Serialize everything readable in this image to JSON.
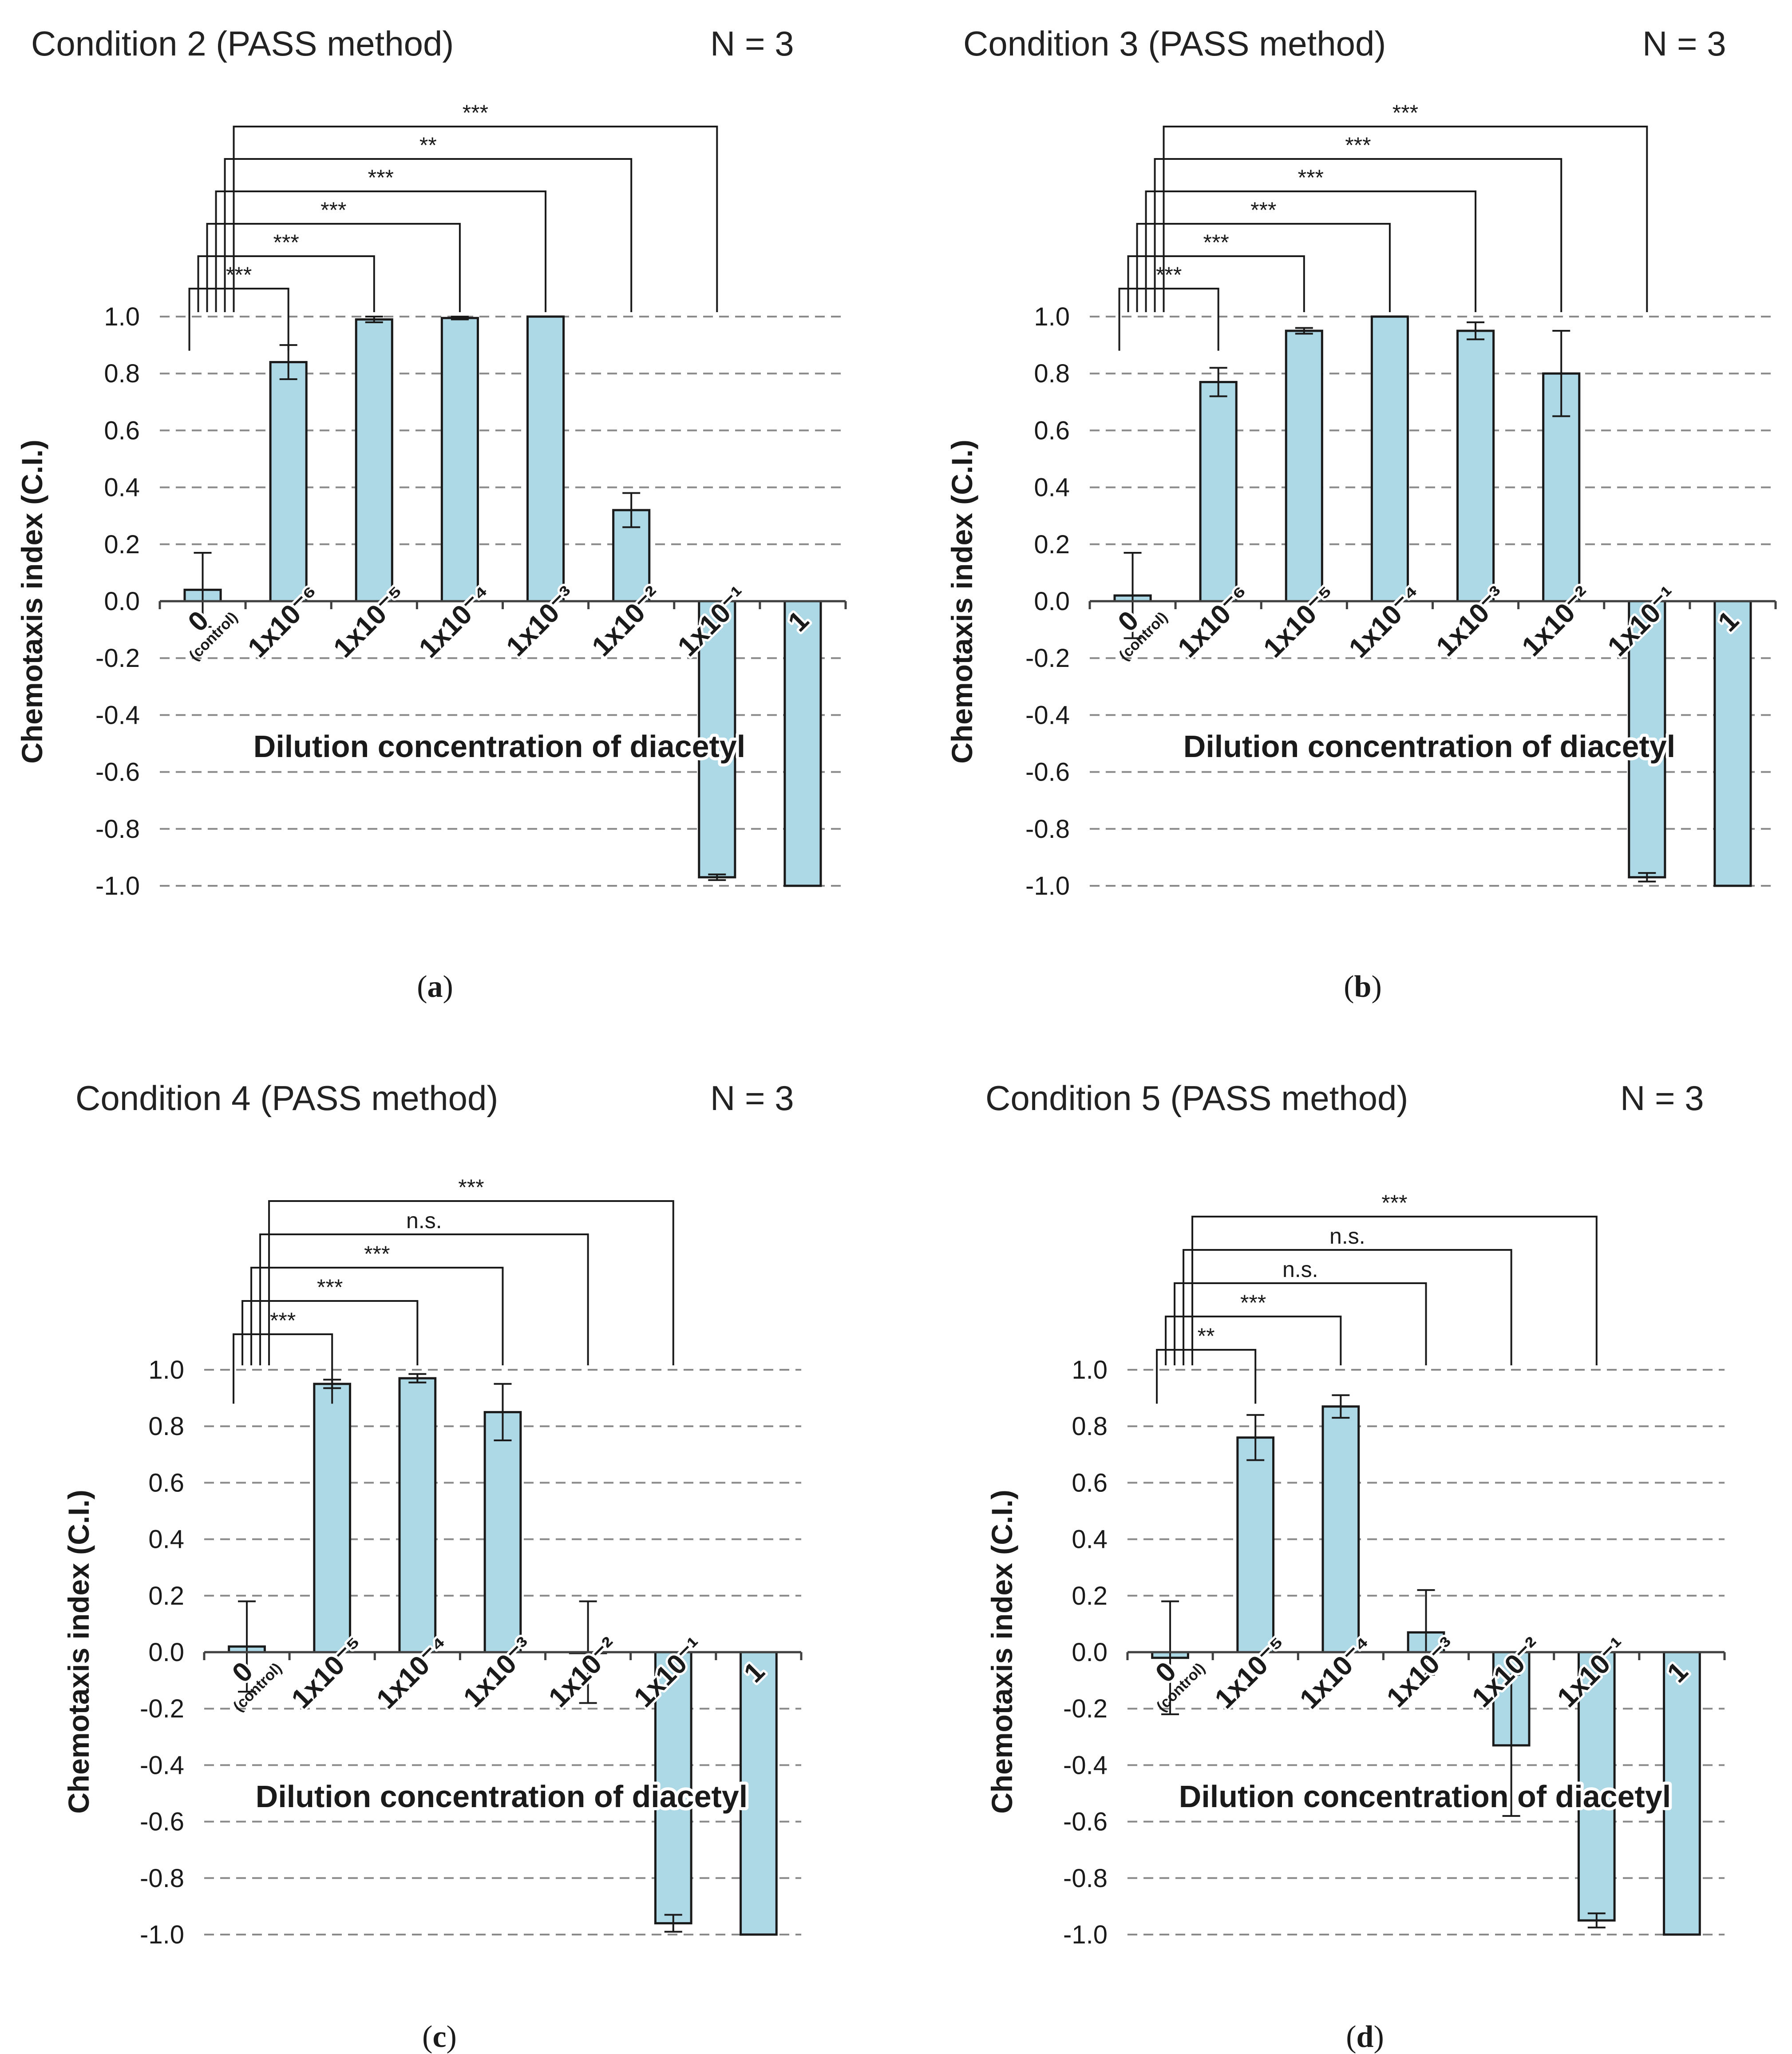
{
  "chart_data": [
    {
      "type": "bar",
      "panel_label": "a",
      "title": "Condition 2 (PASS method)",
      "n_label": "N = 3",
      "xlabel": "Dilution concentration of diacetyl",
      "ylabel": "Chemotaxis index (C.I.)",
      "ylim": [
        -1.0,
        1.0
      ],
      "yticks": [
        "1.0",
        "0.8",
        "0.6",
        "0.4",
        "0.2",
        "0.0",
        "-0.2",
        "-0.4",
        "-0.6",
        "-0.8",
        "-1.0"
      ],
      "grid": true,
      "categories": [
        {
          "main": "0",
          "sub": "(control)"
        },
        {
          "main": "1x10⁻⁶",
          "sub": ""
        },
        {
          "main": "1x10⁻⁵",
          "sub": ""
        },
        {
          "main": "1x10⁻⁴",
          "sub": ""
        },
        {
          "main": "1x10⁻³",
          "sub": ""
        },
        {
          "main": "1x10⁻²",
          "sub": ""
        },
        {
          "main": "1x10⁻¹",
          "sub": ""
        },
        {
          "main": "1",
          "sub": ""
        }
      ],
      "values": [
        0.04,
        0.84,
        0.99,
        0.995,
        1.0,
        0.32,
        -0.97,
        -1.0
      ],
      "errors": [
        0.13,
        0.06,
        0.01,
        0.005,
        0.0,
        0.06,
        0.01,
        0.0
      ],
      "significance": [
        {
          "target": 1,
          "label": "***"
        },
        {
          "target": 2,
          "label": "***"
        },
        {
          "target": 3,
          "label": "***"
        },
        {
          "target": 4,
          "label": "***"
        },
        {
          "target": 5,
          "label": "**"
        },
        {
          "target": 6,
          "label": "***"
        }
      ]
    },
    {
      "type": "bar",
      "panel_label": "b",
      "title": "Condition 3 (PASS method)",
      "n_label": "N = 3",
      "xlabel": "Dilution concentration of diacetyl",
      "ylabel": "Chemotaxis index (C.I.)",
      "ylim": [
        -1.0,
        1.0
      ],
      "yticks": [
        "1.0",
        "0.8",
        "0.6",
        "0.4",
        "0.2",
        "0.0",
        "-0.2",
        "-0.4",
        "-0.6",
        "-0.8",
        "-1.0"
      ],
      "grid": true,
      "categories": [
        {
          "main": "0",
          "sub": "(control)"
        },
        {
          "main": "1x10⁻⁶",
          "sub": ""
        },
        {
          "main": "1x10⁻⁵",
          "sub": ""
        },
        {
          "main": "1x10⁻⁴",
          "sub": ""
        },
        {
          "main": "1x10⁻³",
          "sub": ""
        },
        {
          "main": "1x10⁻²",
          "sub": ""
        },
        {
          "main": "1x10⁻¹",
          "sub": ""
        },
        {
          "main": "1",
          "sub": ""
        }
      ],
      "values": [
        0.02,
        0.77,
        0.95,
        1.0,
        0.95,
        0.8,
        -0.97,
        -1.0
      ],
      "errors": [
        0.15,
        0.05,
        0.01,
        0.0,
        0.03,
        0.15,
        0.015,
        0.0
      ],
      "significance": [
        {
          "target": 1,
          "label": "***"
        },
        {
          "target": 2,
          "label": "***"
        },
        {
          "target": 3,
          "label": "***"
        },
        {
          "target": 4,
          "label": "***"
        },
        {
          "target": 5,
          "label": "***"
        },
        {
          "target": 6,
          "label": "***"
        }
      ]
    },
    {
      "type": "bar",
      "panel_label": "c",
      "title": "Condition 4 (PASS method)",
      "n_label": "N = 3",
      "xlabel": "Dilution concentration of diacetyl",
      "ylabel": "Chemotaxis index (C.I.)",
      "ylim": [
        -1.0,
        1.0
      ],
      "yticks": [
        "1.0",
        "0.8",
        "0.6",
        "0.4",
        "0.2",
        "0.0",
        "-0.2",
        "-0.4",
        "-0.6",
        "-0.8",
        "-1.0"
      ],
      "grid": true,
      "categories": [
        {
          "main": "0",
          "sub": "(control)"
        },
        {
          "main": "1x10⁻⁵",
          "sub": ""
        },
        {
          "main": "1x10⁻⁴",
          "sub": ""
        },
        {
          "main": "1x10⁻³",
          "sub": ""
        },
        {
          "main": "1x10⁻²",
          "sub": ""
        },
        {
          "main": "1x10⁻¹",
          "sub": ""
        },
        {
          "main": "1",
          "sub": ""
        }
      ],
      "values": [
        0.02,
        0.95,
        0.97,
        0.85,
        0.0,
        -0.96,
        -1.0
      ],
      "errors": [
        0.16,
        0.015,
        0.015,
        0.1,
        0.18,
        0.03,
        0.0
      ],
      "significance": [
        {
          "target": 1,
          "label": "***"
        },
        {
          "target": 2,
          "label": "***"
        },
        {
          "target": 3,
          "label": "***"
        },
        {
          "target": 4,
          "label": "n.s."
        },
        {
          "target": 5,
          "label": "***"
        }
      ]
    },
    {
      "type": "bar",
      "panel_label": "d",
      "title": "Condition 5 (PASS method)",
      "n_label": "N = 3",
      "xlabel": "Dilution concentration of diacetyl",
      "ylabel": "Chemotaxis index (C.I.)",
      "ylim": [
        -1.0,
        1.0
      ],
      "yticks": [
        "1.0",
        "0.8",
        "0.6",
        "0.4",
        "0.2",
        "0.0",
        "-0.2",
        "-0.4",
        "-0.6",
        "-0.8",
        "-1.0"
      ],
      "grid": true,
      "categories": [
        {
          "main": "0",
          "sub": "(control)"
        },
        {
          "main": "1x10⁻⁵",
          "sub": ""
        },
        {
          "main": "1x10⁻⁴",
          "sub": ""
        },
        {
          "main": "1x10⁻³",
          "sub": ""
        },
        {
          "main": "1x10⁻²",
          "sub": ""
        },
        {
          "main": "1x10⁻¹",
          "sub": ""
        },
        {
          "main": "1",
          "sub": ""
        }
      ],
      "values": [
        -0.02,
        0.76,
        0.87,
        0.07,
        -0.33,
        -0.95,
        -1.0
      ],
      "errors": [
        0.2,
        0.08,
        0.04,
        0.15,
        0.25,
        0.025,
        0.0
      ],
      "significance": [
        {
          "target": 1,
          "label": "**"
        },
        {
          "target": 2,
          "label": "***"
        },
        {
          "target": 3,
          "label": "n.s."
        },
        {
          "target": 4,
          "label": "n.s."
        },
        {
          "target": 5,
          "label": "***"
        }
      ]
    }
  ]
}
